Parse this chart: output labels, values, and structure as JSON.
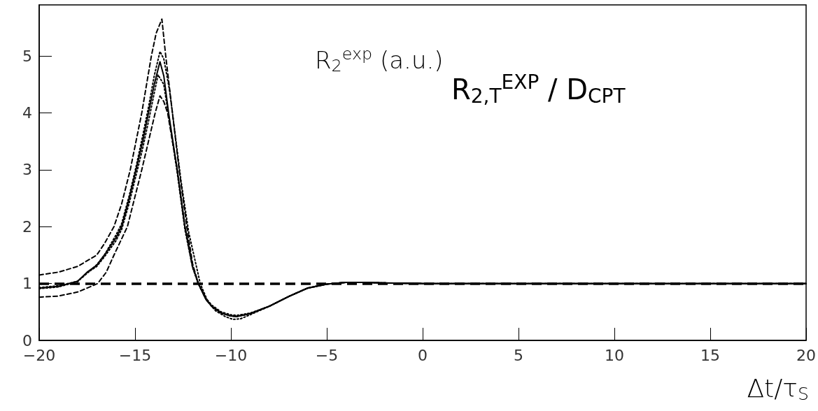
{
  "chart_data": {
    "type": "line",
    "title": "R$_{2,T}$$^{EXP}$ / D$_{CPT}$",
    "ylabel": "R$_{2}$$^{exp}$ (a.u.)",
    "xlabel": "Δt/τ$_{S}$",
    "xlim": [
      -20,
      20
    ],
    "xticks": [
      -20,
      -15,
      -10,
      -5,
      0,
      5,
      10,
      15,
      20
    ],
    "ylim": [
      0,
      5.9
    ],
    "yticks": [
      0,
      1,
      2,
      3,
      4,
      5
    ],
    "grid": false,
    "ref_lines": [
      {
        "axis": "y",
        "value": 1,
        "label": null,
        "color": "#000000",
        "line_style": "dashed"
      }
    ],
    "series": [
      {
        "color": "#000000",
        "line_style": "solid",
        "x": [
          -20,
          -19,
          -18,
          -17.5,
          -17,
          -16.6,
          -16,
          -15.7,
          -15.3,
          -14.95,
          -14.6,
          -14.3,
          -14,
          -13.7,
          -13.5,
          -13.25,
          -12.8,
          -12.4,
          -12,
          -11.7,
          -11.3,
          -11,
          -10.5,
          -10,
          -9.7,
          -9,
          -8,
          -7,
          -6,
          -5,
          -4,
          -3,
          -2,
          0,
          5,
          10,
          20
        ],
        "values": [
          0.92,
          0.95,
          1.04,
          1.2,
          1.32,
          1.5,
          1.8,
          2.0,
          2.5,
          3.0,
          3.5,
          4.0,
          4.5,
          4.9,
          4.65,
          4.0,
          3.0,
          2.0,
          1.3,
          1.0,
          0.72,
          0.6,
          0.48,
          0.43,
          0.42,
          0.47,
          0.6,
          0.77,
          0.92,
          0.99,
          1.02,
          1.02,
          1.01,
          1.0,
          1.0,
          1.0,
          1.0
        ]
      },
      {
        "color": "#000000",
        "line_style": "dotted",
        "x": [
          -20,
          -19,
          -18,
          -17.5,
          -17,
          -16.6,
          -16,
          -15.7,
          -15.3,
          -14.95,
          -14.6,
          -14.3,
          -14,
          -13.7,
          -13.5,
          -13.2,
          -12.9,
          -12.6,
          -12.2,
          -11.8,
          -11.6,
          -11.2,
          -10.8,
          -10.3,
          -9.9,
          -9.5,
          -9,
          -8,
          -7,
          -6,
          -5,
          -4,
          -3,
          -2,
          0,
          5,
          10,
          20
        ],
        "values": [
          0.93,
          0.96,
          1.04,
          1.18,
          1.33,
          1.5,
          1.85,
          2.05,
          2.55,
          3.05,
          3.6,
          4.1,
          4.65,
          5.08,
          4.95,
          4.4,
          3.6,
          2.8,
          1.9,
          1.3,
          1.0,
          0.68,
          0.52,
          0.42,
          0.37,
          0.38,
          0.45,
          0.6,
          0.77,
          0.92,
          0.99,
          1.02,
          1.02,
          1.01,
          1.0,
          1.0,
          1.0,
          1.0
        ]
      },
      {
        "color": "#000000",
        "line_style": "dotted",
        "x": [
          -20,
          -19,
          -18,
          -17.5,
          -17,
          -16.6,
          -16,
          -15.7,
          -15.3,
          -14.95,
          -14.6,
          -14.3,
          -14,
          -13.8,
          -13.5,
          -13.25,
          -12.8,
          -12.4,
          -12,
          -11.7,
          -11.3,
          -11,
          -10.5,
          -10,
          -9.7,
          -9,
          -8,
          -7,
          -6,
          -5,
          -4,
          -3,
          -2,
          0,
          5,
          10,
          20
        ],
        "values": [
          0.91,
          0.94,
          1.03,
          1.19,
          1.3,
          1.47,
          1.75,
          1.95,
          2.42,
          2.9,
          3.38,
          3.85,
          4.35,
          4.67,
          4.5,
          3.95,
          2.95,
          1.95,
          1.28,
          1.0,
          0.74,
          0.62,
          0.5,
          0.45,
          0.44,
          0.48,
          0.6,
          0.77,
          0.92,
          0.99,
          1.02,
          1.02,
          1.01,
          1.0,
          1.0,
          1.0,
          1.0
        ]
      },
      {
        "color": "#000000",
        "line_style": "dashed",
        "x": [
          -20,
          -19,
          -18,
          -17,
          -16.6,
          -16.1,
          -15.7,
          -15.25,
          -14.95,
          -14.65,
          -14.15,
          -13.9,
          -13.6,
          -13.4,
          -13.05,
          -12.7,
          -12.3,
          -12,
          -11.7,
          -11.3,
          -11,
          -10.5,
          -10,
          -9.7,
          -9,
          -8,
          -7,
          -6,
          -5,
          -4,
          -3,
          -2,
          0,
          5,
          10,
          20
        ],
        "values": [
          1.15,
          1.2,
          1.3,
          1.5,
          1.7,
          2.0,
          2.4,
          3.0,
          3.5,
          4.0,
          5.0,
          5.4,
          5.65,
          5.0,
          4.0,
          3.0,
          2.0,
          1.35,
          1.0,
          0.72,
          0.6,
          0.48,
          0.43,
          0.42,
          0.47,
          0.6,
          0.77,
          0.92,
          0.99,
          1.02,
          1.02,
          1.01,
          1.0,
          1.0,
          1.0,
          1.0
        ]
      },
      {
        "color": "#000000",
        "line_style": "dashed",
        "x": [
          -20,
          -19,
          -18,
          -17.5,
          -16.95,
          -16.5,
          -16.1,
          -15.75,
          -15.4,
          -14.65,
          -13.95,
          -13.7,
          -13.5,
          -13.3,
          -12.8,
          -12.4,
          -12,
          -11.7,
          -11.3,
          -11,
          -10.5,
          -10,
          -9.7,
          -9,
          -8,
          -7,
          -6,
          -5,
          -4,
          -3,
          -2,
          0,
          5,
          10,
          20
        ],
        "values": [
          0.76,
          0.78,
          0.85,
          0.92,
          1.0,
          1.2,
          1.5,
          1.75,
          2.0,
          3.0,
          4.0,
          4.3,
          4.2,
          4.0,
          3.0,
          2.0,
          1.3,
          1.0,
          0.72,
          0.6,
          0.48,
          0.43,
          0.42,
          0.47,
          0.6,
          0.77,
          0.92,
          0.99,
          1.02,
          1.02,
          1.01,
          1.0,
          1.0,
          1.0,
          1.0
        ]
      }
    ]
  }
}
